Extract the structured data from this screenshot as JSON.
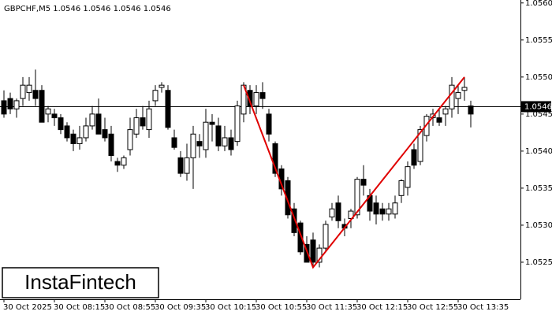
{
  "chart_data": {
    "type": "candlestick",
    "title": "GBPCHF,M5  1.0546 1.0546 1.0546 1.0546",
    "watermark": "InstaFintech",
    "categories": [
      "30 Oct 2025",
      null,
      null,
      null,
      null,
      null,
      null,
      null,
      "30 Oct 08:15",
      null,
      null,
      null,
      null,
      null,
      null,
      null,
      "30 Oct 08:55",
      null,
      null,
      null,
      null,
      null,
      null,
      null,
      "30 Oct 09:35",
      null,
      null,
      null,
      null,
      null,
      null,
      null,
      "30 Oct 10:15",
      null,
      null,
      null,
      null,
      null,
      null,
      null,
      "30 Oct 10:55",
      null,
      null,
      null,
      null,
      null,
      null,
      null,
      "30 Oct 11:35",
      null,
      null,
      null,
      null,
      null,
      null,
      null,
      "30 Oct 12:15",
      null,
      null,
      null,
      null,
      null,
      null,
      null,
      "30 Oct 12:55",
      null,
      null,
      null,
      null,
      null,
      null,
      null,
      "30 Oct 13:35",
      null,
      null
    ],
    "open": [
      1.05468,
      1.05471,
      1.05457,
      1.05471,
      1.05479,
      1.05482,
      1.05482,
      1.0545,
      1.0545,
      1.05445,
      1.05434,
      1.05423,
      1.0541,
      1.05418,
      1.05434,
      1.0545,
      1.05429,
      1.05423,
      1.05386,
      1.05381,
      1.05402,
      1.05423,
      1.05445,
      1.05429,
      1.05468,
      1.05486,
      1.05482,
      1.05418,
      1.05391,
      1.0537,
      1.05391,
      1.05413,
      1.05402,
      1.05439,
      1.05434,
      1.05407,
      1.05418,
      1.05413,
      1.0545,
      1.05482,
      1.05461,
      1.05479,
      1.0545,
      1.0541,
      1.05376,
      1.0536,
      1.05322,
      1.05303,
      1.05274,
      1.0528,
      1.0525,
      1.05269,
      1.05311,
      1.0533,
      1.05301,
      1.05309,
      1.05314,
      1.05362,
      1.0534,
      1.0533,
      1.05322,
      1.05315,
      1.05315,
      1.0534,
      1.05351,
      1.05402,
      1.05386,
      1.05421,
      1.05445,
      1.05445,
      1.0545,
      1.05457,
      1.05471,
      1.05482,
      1.05461
    ],
    "high": [
      1.05482,
      1.05479,
      1.05471,
      1.055,
      1.055,
      1.0551,
      1.05489,
      1.05461,
      1.05457,
      1.0545,
      1.05439,
      1.05429,
      1.05434,
      1.05445,
      1.05461,
      1.05471,
      1.05445,
      1.05434,
      1.05391,
      1.05394,
      1.05445,
      1.05457,
      1.05461,
      1.05468,
      1.05489,
      1.05493,
      1.05489,
      1.05429,
      1.054,
      1.0541,
      1.05434,
      1.05423,
      1.05457,
      1.0545,
      1.05445,
      1.05434,
      1.05429,
      1.05468,
      1.05493,
      1.05489,
      1.05489,
      1.05493,
      1.05457,
      1.05413,
      1.05381,
      1.05365,
      1.0533,
      1.05306,
      1.05285,
      1.0529,
      1.05274,
      1.05306,
      1.0533,
      1.0534,
      1.05309,
      1.05322,
      1.05365,
      1.05381,
      1.05349,
      1.0534,
      1.0533,
      1.0533,
      1.0534,
      1.05362,
      1.05386,
      1.0541,
      1.05434,
      1.0545,
      1.05457,
      1.05457,
      1.05461,
      1.055,
      1.05489,
      1.055,
      1.05468
    ],
    "low": [
      1.05445,
      1.0545,
      1.05445,
      1.05461,
      1.05468,
      1.05461,
      1.05439,
      1.05439,
      1.05434,
      1.05423,
      1.05413,
      1.054,
      1.05402,
      1.05413,
      1.05429,
      1.05423,
      1.05413,
      1.05386,
      1.05372,
      1.05376,
      1.05394,
      1.05418,
      1.05429,
      1.05418,
      1.05461,
      1.05479,
      1.05429,
      1.05402,
      1.05365,
      1.0536,
      1.05349,
      1.05391,
      1.05391,
      1.05413,
      1.054,
      1.054,
      1.05394,
      1.05407,
      1.05439,
      1.0545,
      1.0545,
      1.05457,
      1.05413,
      1.05365,
      1.0534,
      1.05309,
      1.05285,
      1.0526,
      1.0525,
      1.05243,
      1.05243,
      1.05264,
      1.05306,
      1.05296,
      1.05285,
      1.05296,
      1.05309,
      1.0534,
      1.05306,
      1.05301,
      1.05306,
      1.05306,
      1.05309,
      1.0533,
      1.0534,
      1.05376,
      1.05381,
      1.05413,
      1.05434,
      1.05434,
      1.05434,
      1.05445,
      1.0545,
      1.05468,
      1.05432
    ],
    "close": [
      1.0545,
      1.05457,
      1.05468,
      1.05489,
      1.05489,
      1.05471,
      1.05439,
      1.05457,
      1.05445,
      1.05429,
      1.05418,
      1.0541,
      1.05418,
      1.05434,
      1.0545,
      1.05423,
      1.05418,
      1.05394,
      1.05381,
      1.05391,
      1.05429,
      1.05445,
      1.05434,
      1.05457,
      1.05482,
      1.05489,
      1.05432,
      1.05405,
      1.0537,
      1.05391,
      1.05423,
      1.05407,
      1.05439,
      1.05436,
      1.05407,
      1.05418,
      1.05402,
      1.05461,
      1.05489,
      1.05461,
      1.05479,
      1.05471,
      1.05423,
      1.0537,
      1.05349,
      1.05314,
      1.0529,
      1.05264,
      1.0525,
      1.0525,
      1.05269,
      1.05301,
      1.05322,
      1.05306,
      1.05296,
      1.05319,
      1.05362,
      1.05354,
      1.05319,
      1.05315,
      1.05315,
      1.05322,
      1.0533,
      1.0536,
      1.05379,
      1.05381,
      1.05429,
      1.05447,
      1.0545,
      1.05439,
      1.05457,
      1.05489,
      1.05479,
      1.05486,
      1.0545
    ],
    "up_color": "#ffffff",
    "down_color": "#000000",
    "pattern": {
      "color": "#e00000",
      "x": [
        38,
        49,
        73
      ],
      "y": [
        1.05489,
        1.05243,
        1.055
      ]
    },
    "current_price": {
      "value": 1.0546,
      "label": "1.0546"
    },
    "ylim": [
      1.052,
      1.05604
    ],
    "yticks": [
      {
        "value": 1.0525,
        "label": "1.0525"
      },
      {
        "value": 1.053,
        "label": "1.0530"
      },
      {
        "value": 1.0535,
        "label": "1.0535"
      },
      {
        "value": 1.054,
        "label": "1.0540"
      },
      {
        "value": 1.0545,
        "label": "1.0545"
      },
      {
        "value": 1.055,
        "label": "1.0550"
      },
      {
        "value": 1.0555,
        "label": "1.0555"
      },
      {
        "value": 1.056,
        "label": "1.0560"
      }
    ]
  }
}
